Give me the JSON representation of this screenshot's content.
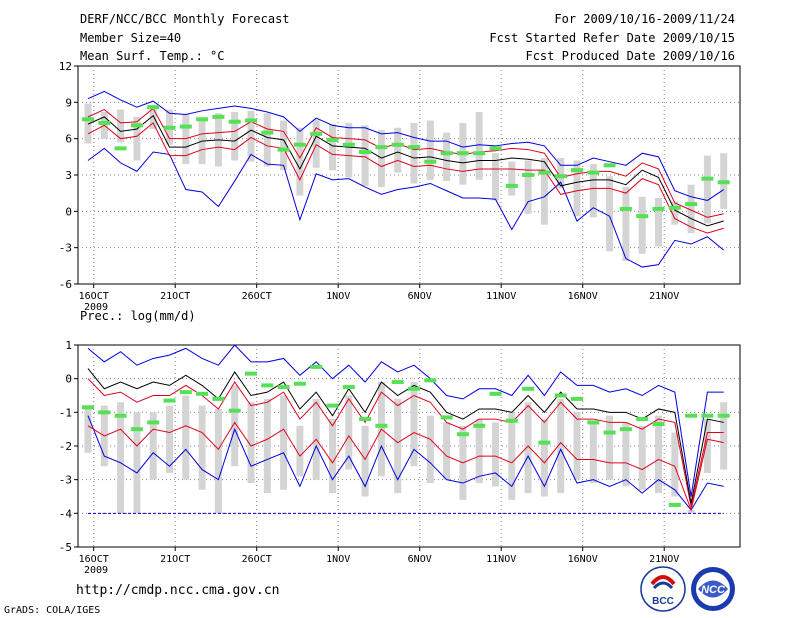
{
  "header": {
    "title": "DERF/NCC/BCC Monthly Forecast",
    "member_size": "Member Size=40",
    "variable": "Mean Surf. Temp.: °C",
    "forecast_period": "For 2009/10/16-2009/11/24",
    "start_date": "Fcst Started Refer Date 2009/10/15",
    "produced_date": "Fcst Produced Date 2009/10/16"
  },
  "footer": {
    "url": "http://cmdp.ncc.cma.gov.cn",
    "credit": "GrADS: COLA/IGES",
    "logo_bcc": "BCC",
    "logo_ncc": "NCC"
  },
  "colors": {
    "box": "#d4d4d4",
    "median": "#55e055",
    "mean": "#000000",
    "inner": "#e0001c",
    "outer": "#0000e0",
    "grid": "#888888"
  },
  "chart_data": [
    {
      "type": "line",
      "title": "Mean Surf. Temp.: °C",
      "ylabel": "°C",
      "ylim": [
        -6,
        12
      ],
      "yticks": [
        12,
        9,
        6,
        3,
        0,
        -3,
        -6
      ],
      "ytick_labels": [
        "12",
        "9",
        "6",
        "3",
        "0",
        "-3",
        "-6"
      ],
      "xtick_index": [
        0,
        5,
        10,
        15,
        20,
        25,
        30,
        35
      ],
      "xtick_labels": [
        "16OCT",
        "21OCT",
        "26OCT",
        "1NOV",
        "6NOV",
        "11NOV",
        "16NOV",
        "21NOV"
      ],
      "year_label": "2009",
      "n_days": 40,
      "series": [
        {
          "name": "mean",
          "values": [
            7.2,
            7.8,
            6.6,
            6.8,
            7.9,
            5.3,
            5.3,
            5.8,
            5.9,
            5.8,
            6.7,
            6.1,
            5.9,
            3.5,
            6.2,
            5.4,
            5.3,
            5.2,
            4.4,
            4.9,
            4.4,
            4.5,
            4.2,
            4.0,
            4.2,
            4.2,
            4.4,
            4.3,
            4.1,
            2.1,
            2.4,
            2.6,
            2.6,
            2.2,
            3.4,
            2.8,
            0.1,
            -0.6,
            -1.2,
            -0.8
          ]
        },
        {
          "name": "upper",
          "values": [
            7.8,
            8.4,
            7.3,
            7.4,
            8.5,
            6.0,
            6.0,
            6.4,
            6.5,
            6.6,
            7.4,
            6.8,
            6.6,
            4.4,
            6.9,
            6.1,
            6.0,
            5.9,
            5.2,
            5.6,
            5.1,
            5.2,
            4.9,
            4.7,
            4.9,
            5.0,
            5.2,
            5.1,
            4.8,
            2.8,
            3.1,
            3.3,
            3.3,
            2.9,
            4.0,
            3.5,
            0.7,
            0.1,
            -0.5,
            -0.2
          ]
        },
        {
          "name": "lower",
          "values": [
            6.4,
            7.1,
            6.0,
            6.2,
            7.3,
            4.6,
            4.6,
            5.1,
            5.3,
            5.1,
            6.1,
            5.4,
            5.2,
            2.6,
            5.5,
            4.7,
            4.6,
            4.5,
            3.7,
            4.2,
            3.7,
            3.8,
            3.5,
            3.3,
            3.5,
            3.5,
            3.5,
            3.4,
            3.4,
            1.4,
            1.7,
            1.9,
            1.9,
            1.5,
            2.7,
            2.2,
            -0.6,
            -1.3,
            -1.8,
            -1.4
          ]
        },
        {
          "name": "max",
          "values": [
            9.3,
            9.9,
            9.2,
            8.6,
            9.1,
            8.1,
            8.0,
            8.3,
            8.5,
            8.7,
            8.5,
            8.2,
            7.8,
            6.6,
            7.7,
            7.1,
            6.9,
            6.9,
            6.4,
            6.5,
            6.1,
            5.8,
            5.8,
            5.3,
            5.5,
            5.4,
            5.6,
            5.7,
            5.4,
            3.8,
            3.8,
            4.4,
            4.1,
            3.8,
            4.8,
            4.5,
            1.7,
            1.2,
            0.9,
            1.8
          ]
        },
        {
          "name": "min",
          "values": [
            4.2,
            5.2,
            4.0,
            3.3,
            4.9,
            4.7,
            1.8,
            1.6,
            0.4,
            2.5,
            4.7,
            3.9,
            3.8,
            -0.7,
            3.1,
            2.6,
            2.7,
            2.0,
            1.4,
            1.8,
            2.0,
            2.3,
            1.7,
            1.1,
            1.1,
            1.0,
            -1.5,
            0.8,
            1.2,
            2.4,
            -0.8,
            0.3,
            -0.4,
            -3.9,
            -4.6,
            -4.4,
            -2.4,
            -2.7,
            -2.1,
            -3.2
          ]
        },
        {
          "name": "box_top",
          "values": [
            8.9,
            8.2,
            8.4,
            7.8,
            8.4,
            8.4,
            8.0,
            7.5,
            8.1,
            8.2,
            8.3,
            8.1,
            7.5,
            6.9,
            7.6,
            7.2,
            7.3,
            7.1,
            6.7,
            6.9,
            7.3,
            7.5,
            6.5,
            7.3,
            8.2,
            4.8,
            4.1,
            4.2,
            4.4,
            4.4,
            4.2,
            3.9,
            2.9,
            2.0,
            1.2,
            1.1,
            0.8,
            2.2,
            4.6,
            4.8
          ]
        },
        {
          "name": "box_bottom",
          "values": [
            5.6,
            6.0,
            5.7,
            4.2,
            6.8,
            5.5,
            3.9,
            3.9,
            3.7,
            4.2,
            4.1,
            3.7,
            3.4,
            1.3,
            3.6,
            3.4,
            2.8,
            2.1,
            2.0,
            3.2,
            2.3,
            2.6,
            2.5,
            2.2,
            2.6,
            0.9,
            1.3,
            -0.2,
            -1.1,
            1.9,
            -0.4,
            -0.5,
            -3.3,
            -4.1,
            -3.5,
            -2.9,
            -1.1,
            -1.8,
            -1.0,
            0.2
          ]
        },
        {
          "name": "median",
          "values": [
            7.6,
            7.3,
            5.2,
            7.1,
            8.6,
            6.9,
            7.0,
            7.6,
            7.8,
            7.4,
            7.5,
            6.5,
            5.1,
            5.5,
            6.4,
            5.9,
            5.5,
            4.9,
            5.3,
            5.5,
            5.3,
            4.1,
            4.8,
            4.8,
            4.8,
            5.2,
            2.1,
            3.0,
            3.2,
            2.9,
            3.4,
            3.2,
            3.8,
            0.2,
            -0.4,
            0.2,
            0.3,
            0.6,
            2.7,
            2.4
          ]
        }
      ]
    },
    {
      "type": "line",
      "title": "Prec.: log(mm/d)",
      "ylabel": "log(mm/d)",
      "ylim": [
        -5,
        1
      ],
      "yticks": [
        1,
        0,
        -1,
        -2,
        -3,
        -4,
        -5
      ],
      "ytick_labels": [
        "1",
        "0",
        "-1",
        "-2",
        "-3",
        "-4",
        "-5"
      ],
      "xtick_index": [
        0,
        5,
        10,
        15,
        20,
        25,
        30,
        35
      ],
      "xtick_labels": [
        "16OCT",
        "21OCT",
        "26OCT",
        "1NOV",
        "6NOV",
        "11NOV",
        "16NOV",
        "21NOV"
      ],
      "year_label": "2009",
      "n_days": 40,
      "series": [
        {
          "name": "mean",
          "values": [
            0.3,
            -0.3,
            -0.1,
            -0.3,
            -0.1,
            -0.2,
            0.1,
            -0.2,
            -0.6,
            0.2,
            -0.5,
            -0.4,
            -0.1,
            -0.9,
            -0.4,
            -1.1,
            -0.3,
            -1.0,
            -0.1,
            -0.5,
            -0.2,
            -0.4,
            -1.0,
            -1.2,
            -0.9,
            -0.9,
            -1.0,
            -0.5,
            -1.0,
            -0.4,
            -0.9,
            -0.9,
            -1.0,
            -1.0,
            -1.2,
            -0.9,
            -1.0,
            -3.7,
            -1.2,
            -1.3
          ]
        },
        {
          "name": "upper",
          "values": [
            0.0,
            -0.5,
            -0.4,
            -0.7,
            -0.5,
            -0.5,
            -0.2,
            -0.5,
            -0.9,
            -0.1,
            -0.8,
            -0.7,
            -0.4,
            -1.2,
            -0.7,
            -1.4,
            -0.6,
            -1.3,
            -0.4,
            -0.8,
            -0.5,
            -0.7,
            -1.3,
            -1.5,
            -1.2,
            -1.2,
            -1.3,
            -0.8,
            -1.3,
            -0.7,
            -1.2,
            -1.2,
            -1.3,
            -1.3,
            -1.5,
            -1.2,
            -1.3,
            -3.8,
            -1.6,
            -1.6
          ]
        },
        {
          "name": "lower",
          "values": [
            -1.4,
            -1.7,
            -1.5,
            -2.0,
            -1.5,
            -1.6,
            -1.4,
            -1.6,
            -2.1,
            -1.3,
            -2.0,
            -1.8,
            -1.5,
            -2.3,
            -1.8,
            -2.5,
            -1.7,
            -2.4,
            -1.5,
            -1.9,
            -1.6,
            -1.8,
            -2.3,
            -2.5,
            -2.3,
            -2.3,
            -2.5,
            -2.0,
            -2.5,
            -1.9,
            -2.4,
            -2.4,
            -2.5,
            -2.5,
            -2.7,
            -2.4,
            -2.6,
            -3.9,
            -1.8,
            -1.9
          ]
        },
        {
          "name": "max",
          "values": [
            0.9,
            0.5,
            0.8,
            0.4,
            0.6,
            0.7,
            0.9,
            0.6,
            0.4,
            1.0,
            0.5,
            0.5,
            0.6,
            0.1,
            0.5,
            0.0,
            0.4,
            -0.1,
            0.5,
            0.2,
            0.4,
            0.0,
            -0.5,
            -0.6,
            -0.3,
            -0.3,
            -0.5,
            0.1,
            -0.5,
            0.2,
            -0.2,
            -0.2,
            -0.4,
            -0.3,
            -0.5,
            -0.2,
            -0.4,
            -3.5,
            -0.4,
            -0.4
          ]
        },
        {
          "name": "min",
          "values": [
            -1.1,
            -2.3,
            -2.5,
            -2.8,
            -2.2,
            -2.6,
            -2.1,
            -2.7,
            -3.0,
            -1.5,
            -2.6,
            -2.4,
            -2.2,
            -3.2,
            -2.0,
            -3.0,
            -2.3,
            -3.2,
            -2.0,
            -3.0,
            -2.1,
            -2.5,
            -3.0,
            -3.1,
            -2.9,
            -2.8,
            -3.2,
            -2.3,
            -3.2,
            -2.1,
            -3.1,
            -3.0,
            -3.2,
            -3.0,
            -3.4,
            -3.0,
            -3.3,
            -3.9,
            -3.1,
            -3.2
          ]
        },
        {
          "name": "box_top",
          "values": [
            -0.8,
            -0.8,
            -0.7,
            -1.0,
            -1.0,
            -0.8,
            -0.5,
            -0.8,
            -0.9,
            -0.2,
            -0.7,
            -0.6,
            -0.5,
            -1.4,
            -0.6,
            -1.2,
            -0.5,
            -1.4,
            -0.1,
            -0.6,
            -0.1,
            -1.1,
            -1.3,
            -1.4,
            -1.2,
            -1.3,
            -1.0,
            -0.7,
            -1.2,
            -0.6,
            -1.0,
            -1.3,
            -1.1,
            -1.3,
            -1.4,
            -1.1,
            -1.6,
            -3.9,
            -1.2,
            -0.7
          ]
        },
        {
          "name": "box_bottom",
          "values": [
            -2.2,
            -2.6,
            -4.0,
            -4.0,
            -3.0,
            -2.8,
            -3.0,
            -3.3,
            -4.0,
            -2.6,
            -3.1,
            -3.4,
            -3.3,
            -2.9,
            -3.0,
            -3.4,
            -2.7,
            -3.5,
            -2.9,
            -3.4,
            -2.6,
            -3.1,
            -3.0,
            -3.6,
            -3.1,
            -3.2,
            -3.6,
            -3.4,
            -3.5,
            -3.4,
            -3.0,
            -3.1,
            -3.0,
            -3.2,
            -3.3,
            -3.4,
            -3.5,
            -4.0,
            -2.8,
            -2.7
          ]
        },
        {
          "name": "median",
          "values": [
            -0.85,
            -1.0,
            -1.1,
            -1.5,
            -1.3,
            -0.65,
            -0.4,
            -0.45,
            -0.6,
            -0.95,
            0.15,
            -0.2,
            -0.25,
            -0.15,
            0.35,
            -0.8,
            -0.25,
            -1.2,
            -1.4,
            -0.1,
            -0.3,
            -0.05,
            -1.15,
            -1.65,
            -1.4,
            -0.45,
            -1.25,
            -0.3,
            -1.9,
            -0.5,
            -0.6,
            -1.3,
            -1.6,
            -1.5,
            -1.2,
            -1.35,
            -3.75,
            -1.1,
            -1.1,
            -1.1
          ]
        },
        {
          "name": "zero_line",
          "values": [
            -4,
            -4,
            -4,
            -4,
            -4,
            -4,
            -4,
            -4,
            -4,
            -4,
            -4,
            -4,
            -4,
            -4,
            -4,
            -4,
            -4,
            -4,
            -4,
            -4,
            -4,
            -4,
            -4,
            -4,
            -4,
            -4,
            -4,
            -4,
            -4,
            -4,
            -4,
            -4,
            -4,
            -4,
            -4,
            -4,
            -4,
            -4,
            -4,
            -4
          ]
        }
      ]
    }
  ]
}
